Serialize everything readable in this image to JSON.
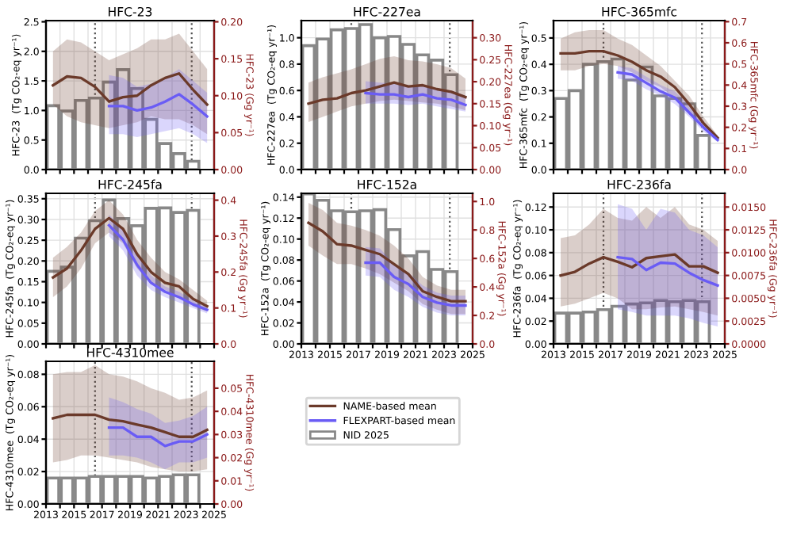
{
  "chart_data": [
    {
      "type": "bar",
      "title": "HFC-23",
      "ylabel": "HFC-23  (Tg CO₂-eq yr⁻¹)",
      "y2label": "HFC-23 (Gg yr⁻¹)",
      "xlim": [
        2013,
        2025
      ],
      "xticks": [
        2013,
        {
          "value": 2014,
          "label": null
        },
        2015,
        {
          "value": 2016,
          "label": null
        },
        2017,
        {
          "value": 2018,
          "label": null
        },
        2019,
        {
          "value": 2020,
          "label": null
        },
        2021,
        {
          "value": 2022,
          "label": null
        },
        2023,
        {
          "value": 2024,
          "label": null
        },
        2025
      ],
      "ylim": [
        0,
        2.52
      ],
      "yticks": [
        {
          "value": 0,
          "label": "0.0"
        },
        {
          "value": 0.5,
          "label": "0.5"
        },
        {
          "value": 1,
          "label": "1.0"
        },
        {
          "value": 1.5,
          "label": "1.5"
        },
        {
          "value": 2,
          "label": "2.0"
        },
        2.5
      ],
      "y2lim": [
        0,
        0.2016
      ],
      "y2ticks": [
        {
          "value": 0,
          "label": "0.00"
        },
        0.05,
        {
          "value": 0.1,
          "label": "0.10"
        },
        0.15,
        {
          "value": 0.2,
          "label": "0.20"
        }
      ],
      "grid": true,
      "legend": "bottom",
      "tick_labels": "y",
      "ref_lines": [
        {
          "axis": "x",
          "value": 2016.5,
          "color": "#555555",
          "line_style": "dotted"
        },
        {
          "axis": "x",
          "value": 2023.4,
          "color": "#555555",
          "line_style": "dotted"
        }
      ],
      "series": [
        {
          "name": "NID 2025",
          "color": "#888888",
          "x": [
            2013.5,
            2014.5,
            2015.5,
            2016.5,
            2017.5,
            2018.5,
            2019.5,
            2020.5,
            2021.5,
            2022.5,
            2023.5
          ],
          "values": [
            1.08,
            0.99,
            1.17,
            1.21,
            1.48,
            1.69,
            1.37,
            0.85,
            0.44,
            0.27,
            0.14
          ]
        },
        {
          "type": "line",
          "name": "NAME-based mean",
          "color": "#6b3a2a",
          "axis": "y2",
          "x": [
            2013.5,
            2014.5,
            2015.5,
            2016.5,
            2017.5,
            2018.5,
            2019.5,
            2020.5,
            2021.5,
            2022.5,
            2023.5,
            2024.5
          ],
          "values": [
            0.114,
            0.126,
            0.124,
            0.112,
            0.092,
            0.098,
            0.1,
            0.114,
            0.124,
            0.13,
            0.108,
            0.088
          ],
          "lower": [
            0.088,
            0.072,
            0.064,
            0.06,
            0.056,
            0.06,
            0.064,
            0.072,
            0.068,
            0.068,
            0.06,
            0.048
          ],
          "upper": [
            0.16,
            0.176,
            0.172,
            0.16,
            0.148,
            0.156,
            0.164,
            0.176,
            0.176,
            0.184,
            0.16,
            0.136
          ]
        },
        {
          "type": "line",
          "name": "FLEXPART-based mean",
          "color": "#6a5cf5",
          "axis": "y2",
          "x": [
            2017.5,
            2018.5,
            2019.5,
            2020.5,
            2021.5,
            2022.5,
            2023.5,
            2024.5
          ],
          "values": [
            0.086,
            0.086,
            0.08,
            0.084,
            0.092,
            0.102,
            0.088,
            0.072
          ],
          "lower": [
            0.048,
            0.048,
            0.044,
            0.048,
            0.052,
            0.056,
            0.048,
            0.036
          ],
          "upper": [
            0.128,
            0.124,
            0.112,
            0.116,
            0.124,
            0.136,
            0.12,
            0.104
          ]
        }
      ]
    },
    {
      "type": "bar",
      "title": "HFC-227ea",
      "ylabel": "HFC-227ea  (Tg CO₂-eq yr⁻¹)",
      "y2label": "HFC-227ea (Gg yr⁻¹)",
      "xlim": [
        2013,
        2025
      ],
      "xticks": [
        2013,
        {
          "value": 2014,
          "label": null
        },
        2015,
        {
          "value": 2016,
          "label": null
        },
        2017,
        {
          "value": 2018,
          "label": null
        },
        2019,
        {
          "value": 2020,
          "label": null
        },
        2021,
        {
          "value": 2022,
          "label": null
        },
        2023,
        {
          "value": 2024,
          "label": null
        },
        2025
      ],
      "ylim": [
        0,
        1.13
      ],
      "yticks": [
        {
          "value": 0,
          "label": "0.0"
        },
        0.2,
        0.4,
        0.6,
        0.8,
        {
          "value": 1,
          "label": "1.0"
        }
      ],
      "y2lim": [
        0,
        0.339
      ],
      "y2ticks": [
        {
          "value": 0,
          "label": "0.00"
        },
        0.05,
        {
          "value": 0.1,
          "label": "0.10"
        },
        0.15,
        {
          "value": 0.2,
          "label": "0.20"
        },
        0.25,
        {
          "value": 0.3,
          "label": "0.30"
        }
      ],
      "grid": true,
      "legend": false,
      "tick_labels": "y",
      "ref_lines": [
        {
          "axis": "x",
          "value": 2016.5,
          "color": "#555555",
          "line_style": "dotted"
        },
        {
          "axis": "x",
          "value": 2023.4,
          "color": "#555555",
          "line_style": "dotted"
        }
      ],
      "series": [
        {
          "color": "#888888",
          "x": [
            2013.5,
            2014.5,
            2015.5,
            2016.5,
            2017.5,
            2018.5,
            2019.5,
            2020.5,
            2021.5,
            2022.5,
            2023.5
          ],
          "values": [
            0.94,
            0.99,
            1.06,
            1.07,
            1.1,
            1.0,
            1.01,
            0.95,
            0.87,
            0.83,
            0.72
          ]
        },
        {
          "type": "line",
          "color": "#6b3a2a",
          "axis": "y2",
          "x": [
            2013.5,
            2014.5,
            2015.5,
            2016.5,
            2017.5,
            2018.5,
            2019.5,
            2020.5,
            2021.5,
            2022.5,
            2023.5,
            2024.5
          ],
          "values": [
            0.15,
            0.159,
            0.162,
            0.174,
            0.18,
            0.189,
            0.198,
            0.189,
            0.192,
            0.183,
            0.177,
            0.165
          ],
          "lower": [
            0.108,
            0.12,
            0.132,
            0.144,
            0.15,
            0.156,
            0.159,
            0.156,
            0.153,
            0.15,
            0.144,
            0.135
          ],
          "upper": [
            0.198,
            0.21,
            0.219,
            0.228,
            0.24,
            0.252,
            0.258,
            0.249,
            0.246,
            0.24,
            0.231,
            0.207
          ]
        },
        {
          "type": "line",
          "color": "#6a5cf5",
          "axis": "y2",
          "x": [
            2017.5,
            2018.5,
            2019.5,
            2020.5,
            2021.5,
            2022.5,
            2023.5,
            2024.5
          ],
          "values": [
            0.174,
            0.171,
            0.171,
            0.165,
            0.171,
            0.162,
            0.159,
            0.147
          ],
          "lower": [
            0.15,
            0.15,
            0.15,
            0.147,
            0.15,
            0.144,
            0.138,
            0.132
          ],
          "upper": [
            0.201,
            0.198,
            0.195,
            0.189,
            0.192,
            0.183,
            0.18,
            0.168
          ]
        }
      ]
    },
    {
      "type": "bar",
      "title": "HFC-365mfc",
      "ylabel": "HFC-365mfc  (Tg CO₂-eq yr⁻¹)",
      "y2label": "HFC-365mfc (Gg yr⁻¹)",
      "xlim": [
        2013,
        2025
      ],
      "xticks": [
        2013,
        {
          "value": 2014,
          "label": null
        },
        2015,
        {
          "value": 2016,
          "label": null
        },
        2017,
        {
          "value": 2018,
          "label": null
        },
        2019,
        {
          "value": 2020,
          "label": null
        },
        2021,
        {
          "value": 2022,
          "label": null
        },
        2023,
        {
          "value": 2024,
          "label": null
        },
        2025
      ],
      "ylim": [
        0,
        0.566
      ],
      "yticks": [
        {
          "value": 0,
          "label": "0.0"
        },
        0.1,
        0.2,
        0.3,
        0.4,
        0.5
      ],
      "y2lim": [
        0,
        0.705
      ],
      "y2ticks": [
        {
          "value": 0,
          "label": "0.0"
        },
        0.1,
        0.2,
        0.3,
        0.4,
        0.5,
        0.6,
        0.7
      ],
      "grid": true,
      "legend": false,
      "tick_labels": "y",
      "ref_lines": [
        {
          "axis": "x",
          "value": 2016.5,
          "color": "#555555",
          "line_style": "dotted"
        },
        {
          "axis": "x",
          "value": 2023.4,
          "color": "#555555",
          "line_style": "dotted"
        }
      ],
      "series": [
        {
          "color": "#888888",
          "x": [
            2013.5,
            2014.5,
            2015.5,
            2016.5,
            2017.5,
            2018.5,
            2019.5,
            2020.5,
            2021.5,
            2022.5,
            2023.5
          ],
          "values": [
            0.27,
            0.3,
            0.4,
            0.41,
            0.42,
            0.34,
            0.39,
            0.28,
            0.27,
            0.25,
            0.13
          ]
        },
        {
          "type": "line",
          "color": "#6b3a2a",
          "axis": "y2",
          "x": [
            2013.5,
            2014.5,
            2015.5,
            2016.5,
            2017.5,
            2018.5,
            2019.5,
            2020.5,
            2021.5,
            2022.5,
            2023.5,
            2024.5
          ],
          "values": [
            0.55,
            0.55,
            0.56,
            0.56,
            0.54,
            0.51,
            0.47,
            0.44,
            0.39,
            0.31,
            0.22,
            0.15
          ],
          "lower": [
            0.47,
            0.47,
            0.49,
            0.5,
            0.49,
            0.46,
            0.42,
            0.39,
            0.34,
            0.27,
            0.2,
            0.14
          ],
          "upper": [
            0.62,
            0.65,
            0.66,
            0.66,
            0.62,
            0.59,
            0.54,
            0.49,
            0.42,
            0.35,
            0.25,
            0.16
          ]
        },
        {
          "type": "line",
          "color": "#6a5cf5",
          "axis": "y2",
          "x": [
            2017.5,
            2018.5,
            2019.5,
            2020.5,
            2021.5,
            2022.5,
            2023.5,
            2024.5
          ],
          "values": [
            0.46,
            0.45,
            0.41,
            0.37,
            0.34,
            0.27,
            0.2,
            0.14
          ],
          "lower": [
            0.43,
            0.42,
            0.38,
            0.35,
            0.31,
            0.25,
            0.18,
            0.13
          ],
          "upper": [
            0.49,
            0.48,
            0.44,
            0.4,
            0.37,
            0.3,
            0.22,
            0.16
          ]
        }
      ]
    },
    {
      "type": "bar",
      "title": "HFC-245fa",
      "ylabel": "HFC-245fa  (Tg CO₂-eq yr⁻¹)",
      "y2label": "HFC-245fa (Gg yr⁻¹)",
      "xlim": [
        2013,
        2025
      ],
      "xticks": [
        2013,
        {
          "value": 2014,
          "label": null
        },
        2015,
        {
          "value": 2016,
          "label": null
        },
        2017,
        {
          "value": 2018,
          "label": null
        },
        2019,
        {
          "value": 2020,
          "label": null
        },
        2021,
        {
          "value": 2022,
          "label": null
        },
        2023,
        {
          "value": 2024,
          "label": null
        },
        2025
      ],
      "ylim": [
        0,
        0.363
      ],
      "yticks": [
        {
          "value": 0,
          "label": "0.00"
        },
        0.05,
        {
          "value": 0.1,
          "label": "0.10"
        },
        0.15,
        {
          "value": 0.2,
          "label": "0.20"
        },
        0.25,
        {
          "value": 0.3,
          "label": "0.30"
        },
        0.35
      ],
      "y2lim": [
        0,
        0.419
      ],
      "y2ticks": [
        {
          "value": 0,
          "label": "0.0"
        },
        0.1,
        0.2,
        0.3,
        0.4
      ],
      "grid": true,
      "legend": false,
      "tick_labels": "y",
      "ref_lines": [
        {
          "axis": "x",
          "value": 2016.5,
          "color": "#555555",
          "line_style": "dotted"
        },
        {
          "axis": "x",
          "value": 2023.4,
          "color": "#555555",
          "line_style": "dotted"
        }
      ],
      "series": [
        {
          "color": "#888888",
          "x": [
            2013.5,
            2014.5,
            2015.5,
            2016.5,
            2017.5,
            2018.5,
            2019.5,
            2020.5,
            2021.5,
            2022.5,
            2023.5
          ],
          "values": [
            0.175,
            0.185,
            0.255,
            0.297,
            0.347,
            0.302,
            0.285,
            0.327,
            0.328,
            0.317,
            0.322
          ]
        },
        {
          "type": "line",
          "color": "#6b3a2a",
          "axis": "y2",
          "x": [
            2013.5,
            2014.5,
            2015.5,
            2016.5,
            2017.5,
            2018.5,
            2019.5,
            2020.5,
            2021.5,
            2022.5,
            2023.5,
            2024.5
          ],
          "values": [
            0.185,
            0.21,
            0.26,
            0.32,
            0.35,
            0.32,
            0.25,
            0.2,
            0.17,
            0.16,
            0.125,
            0.105
          ],
          "lower": [
            0.13,
            0.16,
            0.21,
            0.28,
            0.31,
            0.28,
            0.21,
            0.17,
            0.15,
            0.13,
            0.105,
            0.09
          ],
          "upper": [
            0.24,
            0.27,
            0.31,
            0.37,
            0.4,
            0.36,
            0.29,
            0.24,
            0.2,
            0.18,
            0.15,
            0.12
          ]
        },
        {
          "type": "line",
          "color": "#6a5cf5",
          "axis": "y2",
          "x": [
            2017.5,
            2018.5,
            2019.5,
            2020.5,
            2021.5,
            2022.5,
            2023.5,
            2024.5
          ],
          "values": [
            0.33,
            0.29,
            0.22,
            0.17,
            0.145,
            0.13,
            0.11,
            0.095
          ],
          "lower": [
            0.3,
            0.26,
            0.19,
            0.15,
            0.13,
            0.115,
            0.1,
            0.085
          ],
          "upper": [
            0.36,
            0.32,
            0.25,
            0.19,
            0.16,
            0.145,
            0.12,
            0.105
          ]
        }
      ]
    },
    {
      "type": "bar",
      "title": "HFC-152a",
      "ylabel": "HFC-152a  (Tg CO₂-eq yr⁻¹)",
      "y2label": "HFC-152a (Gg yr⁻¹)",
      "xlim": [
        2013,
        2025
      ],
      "xticks": [
        2013,
        {
          "value": 2014,
          "label": null
        },
        2015,
        {
          "value": 2016,
          "label": null
        },
        2017,
        {
          "value": 2018,
          "label": null
        },
        2019,
        {
          "value": 2020,
          "label": null
        },
        2021,
        {
          "value": 2022,
          "label": null
        },
        2023,
        {
          "value": 2024,
          "label": null
        },
        2025
      ],
      "ylim": [
        0,
        0.1436
      ],
      "yticks": [
        {
          "value": 0,
          "label": "0.00"
        },
        0.02,
        0.04,
        0.06,
        0.08,
        {
          "value": 0.1,
          "label": "0.10"
        },
        0.12,
        0.14
      ],
      "y2lim": [
        0,
        1.057
      ],
      "y2ticks": [
        {
          "value": 0,
          "label": "0.0"
        },
        0.2,
        0.4,
        0.6,
        0.8,
        {
          "value": 1,
          "label": "1.0"
        }
      ],
      "grid": true,
      "legend": false,
      "ref_lines": [
        {
          "axis": "x",
          "value": 2016.5,
          "color": "#555555",
          "line_style": "dotted"
        },
        {
          "axis": "x",
          "value": 2023.4,
          "color": "#555555",
          "line_style": "dotted"
        }
      ],
      "series": [
        {
          "color": "#888888",
          "x": [
            2013.5,
            2014.5,
            2015.5,
            2016.5,
            2017.5,
            2018.5,
            2019.5,
            2020.5,
            2021.5,
            2022.5,
            2023.5
          ],
          "values": [
            0.143,
            0.137,
            0.127,
            0.126,
            0.127,
            0.128,
            0.109,
            0.084,
            0.088,
            0.071,
            0.069
          ]
        },
        {
          "type": "line",
          "color": "#6b3a2a",
          "axis": "y2",
          "x": [
            2013.5,
            2014.5,
            2015.5,
            2016.5,
            2017.5,
            2018.5,
            2019.5,
            2020.5,
            2021.5,
            2022.5,
            2023.5,
            2024.5
          ],
          "values": [
            0.85,
            0.79,
            0.7,
            0.69,
            0.66,
            0.63,
            0.56,
            0.49,
            0.37,
            0.33,
            0.3,
            0.3
          ],
          "lower": [
            0.69,
            0.62,
            0.56,
            0.56,
            0.53,
            0.49,
            0.43,
            0.37,
            0.28,
            0.24,
            0.21,
            0.21
          ],
          "upper": [
            0.99,
            0.94,
            0.85,
            0.83,
            0.8,
            0.76,
            0.69,
            0.6,
            0.47,
            0.41,
            0.38,
            0.38
          ]
        },
        {
          "type": "line",
          "color": "#6a5cf5",
          "axis": "y2",
          "x": [
            2017.5,
            2018.5,
            2019.5,
            2020.5,
            2021.5,
            2022.5,
            2023.5,
            2024.5
          ],
          "values": [
            0.57,
            0.57,
            0.47,
            0.42,
            0.33,
            0.29,
            0.27,
            0.27
          ],
          "lower": [
            0.48,
            0.47,
            0.38,
            0.33,
            0.26,
            0.22,
            0.2,
            0.2
          ],
          "upper": [
            0.68,
            0.67,
            0.56,
            0.5,
            0.41,
            0.36,
            0.34,
            0.34
          ]
        }
      ]
    },
    {
      "type": "bar",
      "title": "HFC-236fa",
      "ylabel": "HFC-236fa  (Tg CO₂-eq yr⁻¹)",
      "y2label": "HFC-236fa (Gg yr⁻¹)",
      "xlim": [
        2013,
        2025
      ],
      "xticks": [
        2013,
        {
          "value": 2014,
          "label": null
        },
        2015,
        {
          "value": 2016,
          "label": null
        },
        2017,
        {
          "value": 2018,
          "label": null
        },
        2019,
        {
          "value": 2020,
          "label": null
        },
        2021,
        {
          "value": 2022,
          "label": null
        },
        2023,
        {
          "value": 2024,
          "label": null
        },
        2025
      ],
      "ylim": [
        0,
        0.132
      ],
      "yticks": [
        {
          "value": 0,
          "label": "0.00"
        },
        0.02,
        0.04,
        0.06,
        0.08,
        {
          "value": 0.1,
          "label": "0.10"
        },
        0.12
      ],
      "y2lim": [
        0,
        0.0165
      ],
      "y2ticks": [
        {
          "value": 0,
          "label": "0.0000"
        },
        0.0025,
        {
          "value": 0.005,
          "label": "0.0050"
        },
        0.0075,
        {
          "value": 0.01,
          "label": "0.0100"
        },
        0.0125,
        {
          "value": 0.015,
          "label": "0.0150"
        }
      ],
      "grid": true,
      "legend": false,
      "ref_lines": [
        {
          "axis": "x",
          "value": 2016.5,
          "color": "#555555",
          "line_style": "dotted"
        },
        {
          "axis": "x",
          "value": 2023.4,
          "color": "#555555",
          "line_style": "dotted"
        }
      ],
      "series": [
        {
          "color": "#888888",
          "x": [
            2013.5,
            2014.5,
            2015.5,
            2016.5,
            2017.5,
            2018.5,
            2019.5,
            2020.5,
            2021.5,
            2022.5,
            2023.5
          ],
          "values": [
            0.027,
            0.027,
            0.028,
            0.03,
            0.033,
            0.035,
            0.036,
            0.038,
            0.037,
            0.038,
            0.037
          ]
        },
        {
          "type": "line",
          "color": "#6b3a2a",
          "axis": "y2",
          "x": [
            2013.5,
            2014.5,
            2015.5,
            2016.5,
            2017.5,
            2018.5,
            2019.5,
            2020.5,
            2021.5,
            2022.5,
            2023.5,
            2024.5
          ],
          "values": [
            0.0075,
            0.0079,
            0.0088,
            0.0095,
            0.009,
            0.0084,
            0.0094,
            0.0096,
            0.0098,
            0.0085,
            0.0085,
            0.0078
          ],
          "lower": [
            0.0041,
            0.0044,
            0.005,
            0.0056,
            0.005,
            0.0038,
            0.0038,
            0.004,
            0.0041,
            0.0038,
            0.0035,
            0.0031
          ],
          "upper": [
            0.0116,
            0.0119,
            0.0131,
            0.0148,
            0.0138,
            0.0135,
            0.015,
            0.0138,
            0.015,
            0.0131,
            0.0125,
            0.0113
          ]
        },
        {
          "type": "line",
          "color": "#6a5cf5",
          "axis": "y2",
          "x": [
            2017.5,
            2018.5,
            2019.5,
            2020.5,
            2021.5,
            2022.5,
            2023.5,
            2024.5
          ],
          "values": [
            0.0095,
            0.0093,
            0.0081,
            0.0089,
            0.0088,
            0.0078,
            0.007,
            0.0064
          ],
          "lower": [
            0.0038,
            0.0035,
            0.0031,
            0.0031,
            0.0031,
            0.0028,
            0.0023,
            0.0019
          ],
          "upper": [
            0.0153,
            0.0148,
            0.0125,
            0.0148,
            0.0144,
            0.0125,
            0.0119,
            0.0106
          ]
        }
      ]
    },
    {
      "type": "bar",
      "title": "HFC-4310mee",
      "ylabel": "HFC-4310mee  (Tg CO₂-eq yr⁻¹)",
      "y2label": "HFC-4310mee (Gg yr⁻¹)",
      "xlim": [
        2013,
        2025
      ],
      "xticks": [
        2013,
        {
          "value": 2014,
          "label": null
        },
        2015,
        {
          "value": 2016,
          "label": null
        },
        2017,
        {
          "value": 2018,
          "label": null
        },
        2019,
        {
          "value": 2020,
          "label": null
        },
        2021,
        {
          "value": 2022,
          "label": null
        },
        2023,
        {
          "value": 2024,
          "label": null
        },
        2025
      ],
      "ylim": [
        0,
        0.088
      ],
      "yticks": [
        {
          "value": 0,
          "label": "0.00"
        },
        0.02,
        0.04,
        0.06,
        0.08
      ],
      "y2lim": [
        0,
        0.0616
      ],
      "y2ticks": [
        {
          "value": 0,
          "label": "0.00"
        },
        0.01,
        0.02,
        0.03,
        0.04,
        0.05
      ],
      "grid": true,
      "ref_lines": [
        {
          "axis": "x",
          "value": 2016.5,
          "color": "#555555",
          "line_style": "dotted"
        },
        {
          "axis": "x",
          "value": 2023.4,
          "color": "#555555",
          "line_style": "dotted"
        }
      ],
      "series": [
        {
          "type": "line",
          "color": "#6b3a2a",
          "axis": "y2",
          "x": [
            2013.5,
            2014.5,
            2015.5,
            2016.5,
            2017.5,
            2018.5,
            2019.5,
            2020.5,
            2021.5,
            2022.5,
            2023.5,
            2024.5
          ],
          "values": [
            0.037,
            0.0385,
            0.0385,
            0.0385,
            0.0364,
            0.0357,
            0.0343,
            0.033,
            0.031,
            0.029,
            0.029,
            0.032
          ],
          "lower": [
            0.018,
            0.019,
            0.021,
            0.021,
            0.02,
            0.019,
            0.018,
            0.016,
            0.015,
            0.014,
            0.014,
            0.015
          ],
          "upper": [
            0.056,
            0.057,
            0.057,
            0.06,
            0.056,
            0.055,
            0.053,
            0.05,
            0.048,
            0.045,
            0.046,
            0.049
          ]
        },
        {
          "type": "line",
          "color": "#6a5cf5",
          "axis": "y2",
          "x": [
            2017.5,
            2018.5,
            2019.5,
            2020.5,
            2021.5,
            2022.5,
            2023.5,
            2024.5
          ],
          "values": [
            0.033,
            0.033,
            0.029,
            0.029,
            0.025,
            0.027,
            0.027,
            0.03
          ],
          "lower": [
            0.021,
            0.021,
            0.02,
            0.018,
            0.015,
            0.018,
            0.018,
            0.02
          ],
          "upper": [
            0.046,
            0.044,
            0.041,
            0.039,
            0.035,
            0.036,
            0.038,
            0.042
          ]
        },
        {
          "color": "#888888",
          "x": [
            2013.5,
            2014.5,
            2015.5,
            2016.5,
            2017.5,
            2018.5,
            2019.5,
            2020.5,
            2021.5,
            2022.5,
            2023.5
          ],
          "values": [
            0.016,
            0.016,
            0.016,
            0.017,
            0.017,
            0.017,
            0.017,
            0.016,
            0.017,
            0.018,
            0.018
          ]
        }
      ]
    }
  ]
}
